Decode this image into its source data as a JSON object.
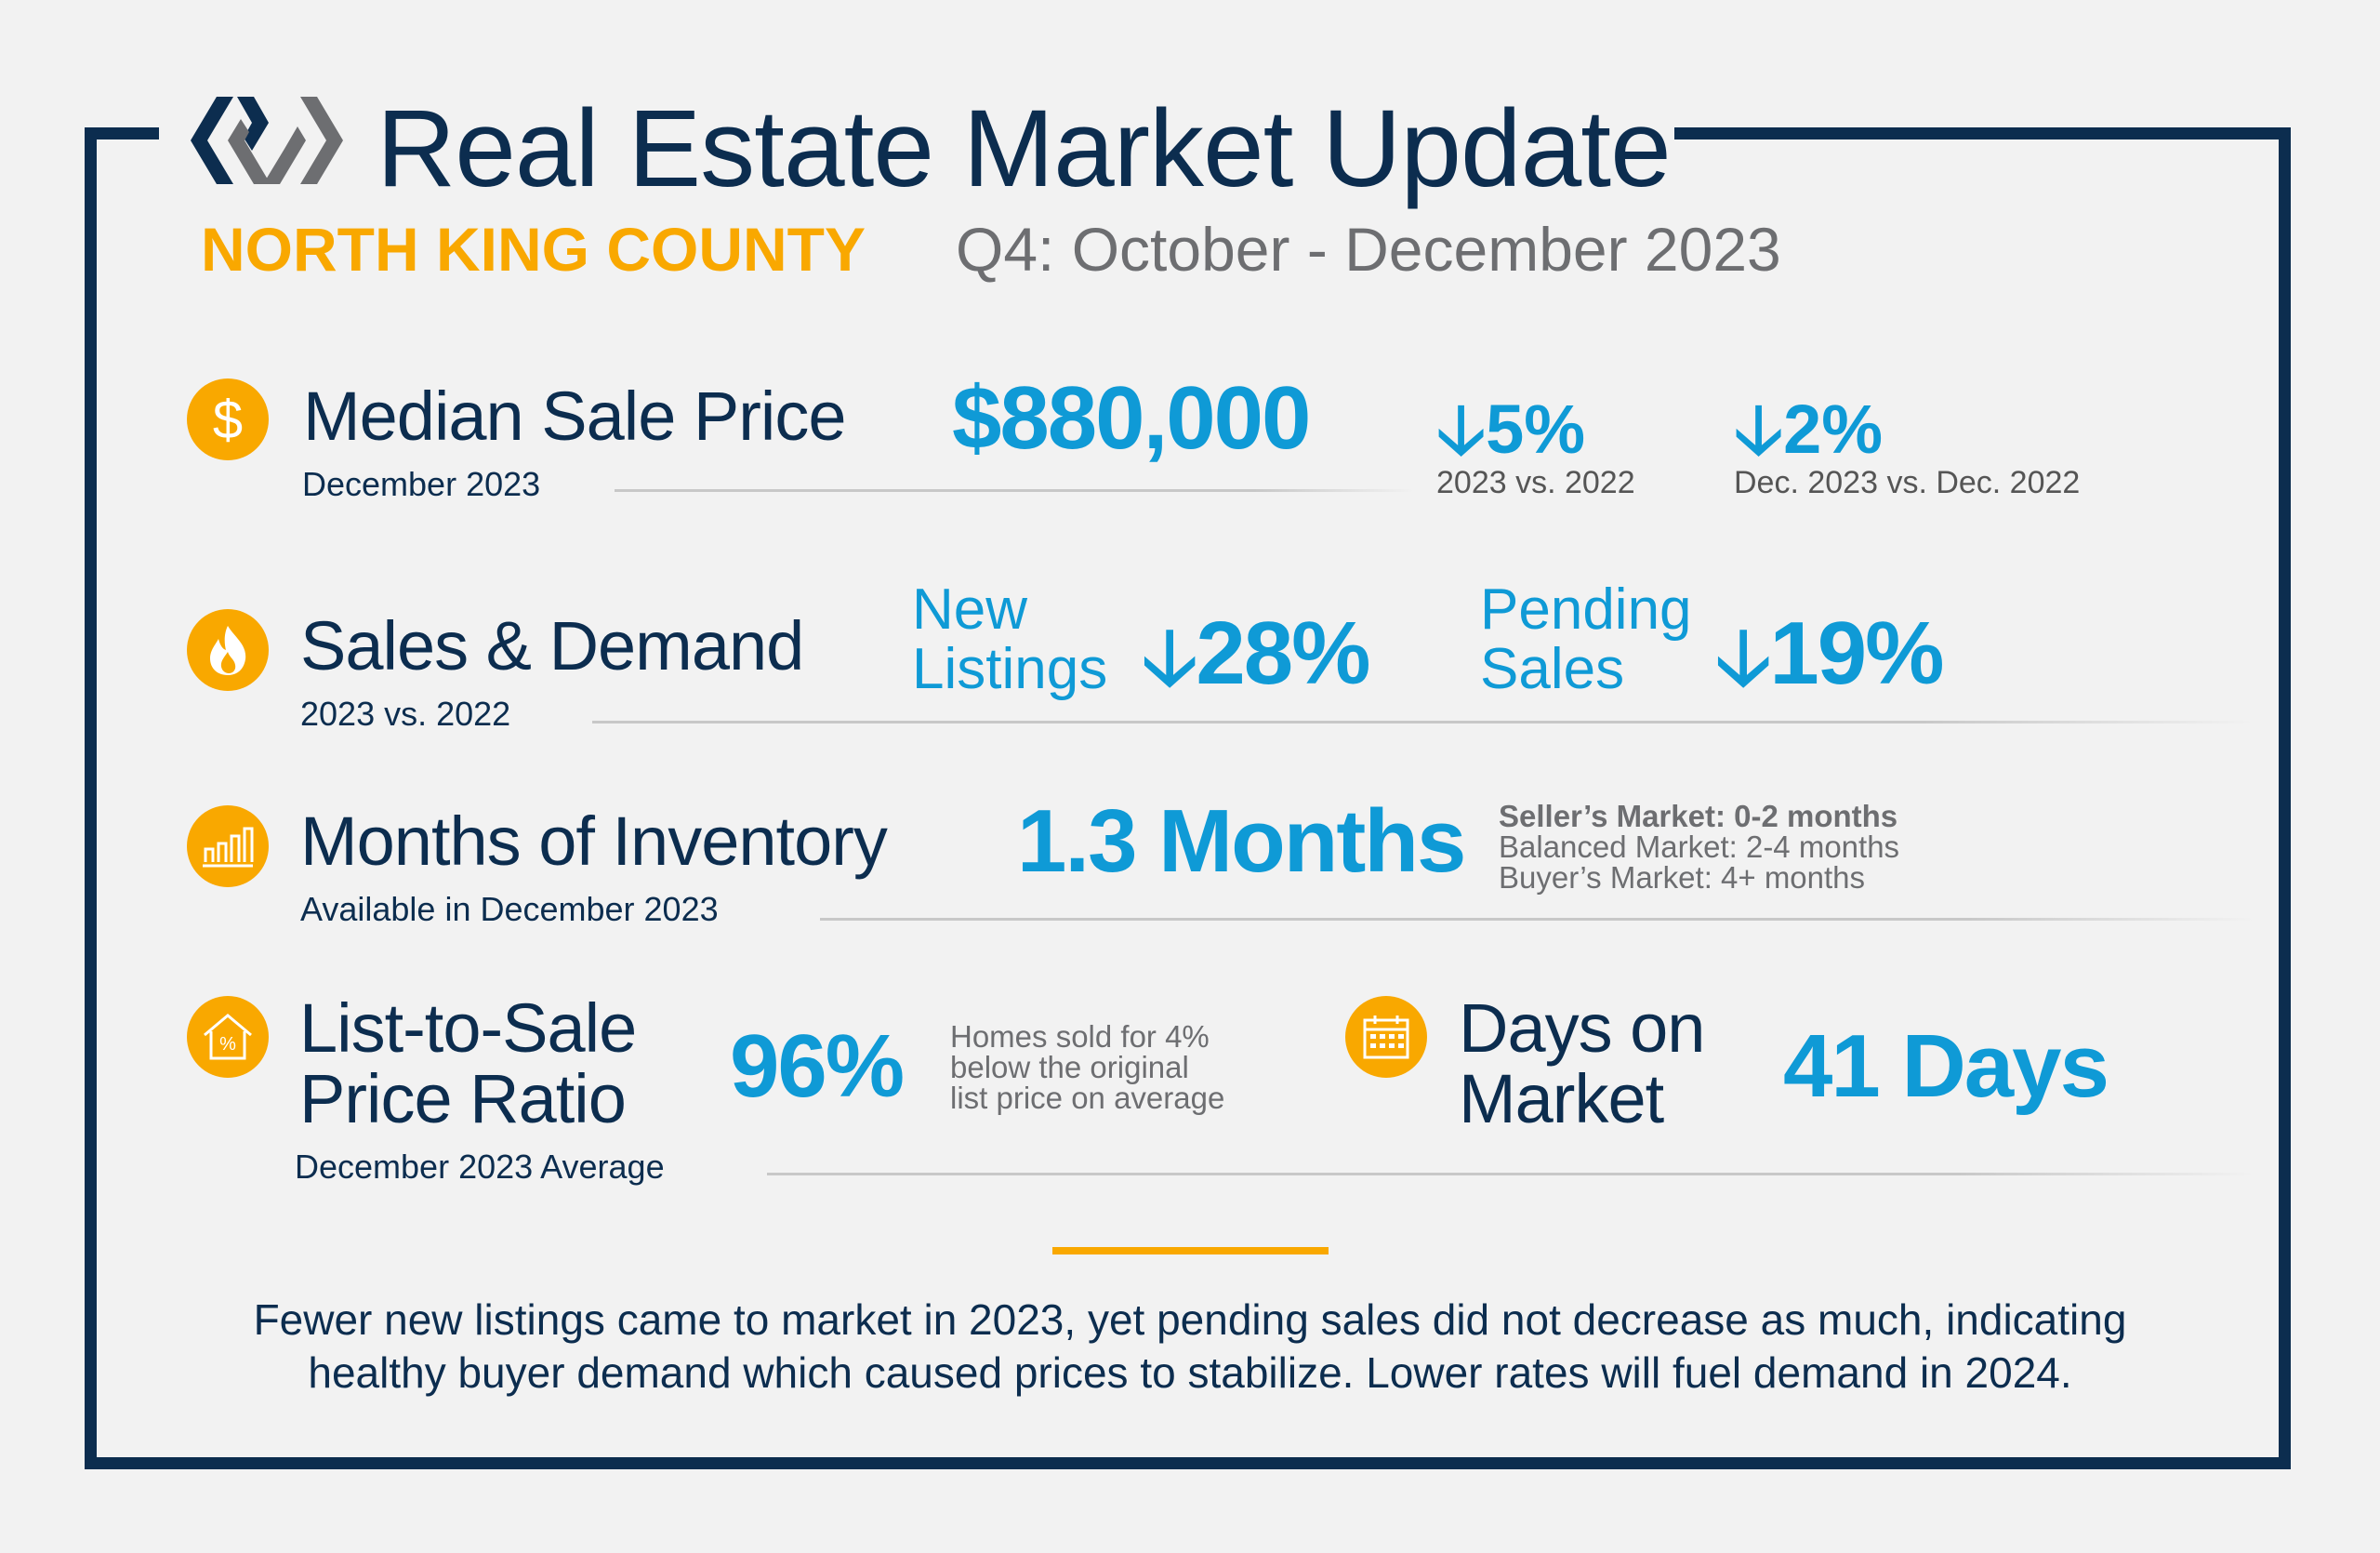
{
  "header": {
    "title": "Real Estate Market Update",
    "region": "NORTH KING COUNTY",
    "period": "Q4: October - December 2023",
    "logo": "windermere-w-logo"
  },
  "colors": {
    "navy": "#0c2d4f",
    "blue": "#0f9ad6",
    "orange": "#f9a800",
    "gray": "#6d6e71",
    "background": "#f2f2f2"
  },
  "median_price": {
    "icon": "dollar-icon",
    "title": "Median Sale Price",
    "subtitle": "December 2023",
    "value": "$880,000",
    "change1": {
      "direction": "down",
      "value": "5%",
      "caption": "2023 vs. 2022"
    },
    "change2": {
      "direction": "down",
      "value": "2%",
      "caption": "Dec. 2023 vs. Dec. 2022"
    }
  },
  "sales_demand": {
    "icon": "flame-icon",
    "title": "Sales & Demand",
    "subtitle": "2023 vs. 2022",
    "new_listings": {
      "label_line1": "New",
      "label_line2": "Listings",
      "direction": "down",
      "value": "28%"
    },
    "pending_sales": {
      "label_line1": "Pending",
      "label_line2": "Sales",
      "direction": "down",
      "value": "19%"
    }
  },
  "inventory": {
    "icon": "bar-chart-icon",
    "title": "Months of Inventory",
    "subtitle": "Available in December 2023",
    "value": "1.3 Months",
    "legend": [
      "Seller’s Market: 0-2 months",
      "Balanced Market: 2-4 months",
      "Buyer’s Market: 4+ months"
    ]
  },
  "list_to_sale": {
    "icon": "house-percent-icon",
    "title_line1": "List-to-Sale",
    "title_line2": "Price Ratio",
    "subtitle": "December 2023 Average",
    "value": "96%",
    "note": [
      "Homes sold for 4%",
      "below the original",
      "list price on average"
    ]
  },
  "days_on_market": {
    "icon": "calendar-icon",
    "title_line1": "Days on",
    "title_line2": "Market",
    "value": "41 Days"
  },
  "footer": {
    "line1": "Fewer new listings came to market in 2023, yet pending sales did not decrease as much, indicating",
    "line2": "healthy buyer demand which caused prices to stabilize. Lower rates will fuel demand in 2024."
  }
}
